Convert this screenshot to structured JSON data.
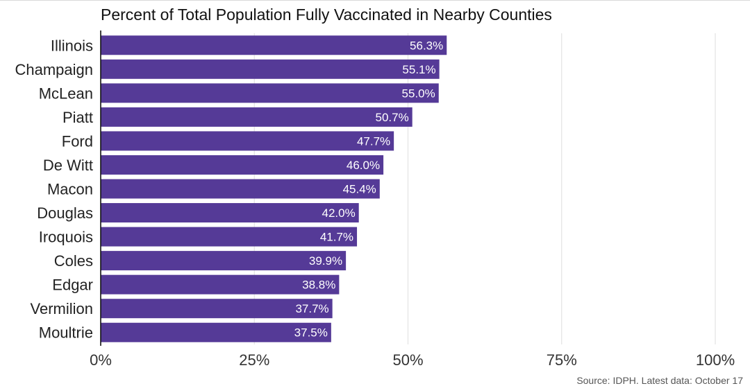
{
  "chart_data": {
    "type": "bar",
    "orientation": "horizontal",
    "title": "Percent of Total Population Fully Vaccinated in Nearby Counties",
    "categories": [
      "Illinois",
      "Champaign",
      "McLean",
      "Piatt",
      "Ford",
      "De Witt",
      "Macon",
      "Douglas",
      "Iroquois",
      "Coles",
      "Edgar",
      "Vermilion",
      "Moultrie"
    ],
    "values": [
      56.3,
      55.1,
      55.0,
      50.7,
      47.7,
      46.0,
      45.4,
      42.0,
      41.7,
      39.9,
      38.8,
      37.7,
      37.5
    ],
    "data_labels": [
      "56.3%",
      "55.1%",
      "55.0%",
      "50.7%",
      "47.7%",
      "46.0%",
      "45.4%",
      "42.0%",
      "41.7%",
      "39.9%",
      "38.8%",
      "37.7%",
      "37.5%"
    ],
    "xlim": [
      0,
      100
    ],
    "xticks": [
      0,
      25,
      50,
      75,
      100
    ],
    "xtick_labels": [
      "0%",
      "25%",
      "50%",
      "75%",
      "100%"
    ],
    "grid": "vertical",
    "bar_color": "#553a97",
    "source": "Source: IDPH. Latest data: October 17"
  }
}
